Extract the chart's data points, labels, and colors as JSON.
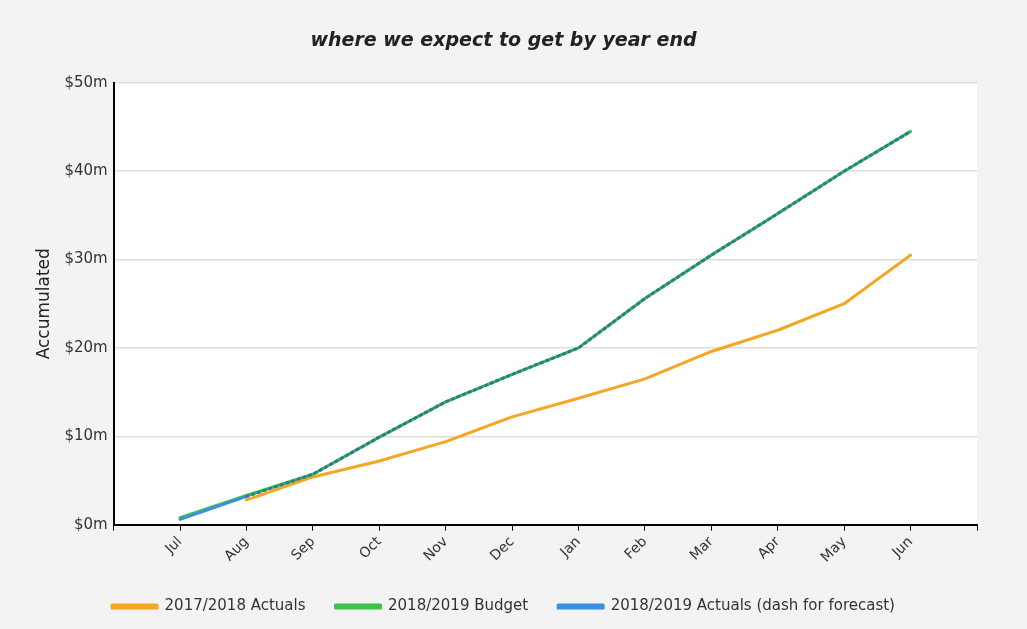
{
  "chart_data": {
    "type": "line",
    "title": "where we expect to get by year end",
    "ylabel": "Accumulated",
    "categories": [
      null,
      "Jul",
      "Aug",
      "Sep",
      "Oct",
      "Nov",
      "Dec",
      "Jan",
      "Feb",
      "Mar",
      "Apr",
      "May",
      "Jun",
      null
    ],
    "series": [
      {
        "name": "2017/2018 Actuals",
        "color": "#f5a623",
        "values": [
          null,
          null,
          2.8,
          5.4,
          7.2,
          9.4,
          12.2,
          14.3,
          16.5,
          19.6,
          22.0,
          25.0,
          30.5,
          null
        ]
      },
      {
        "name": "2018/2019 Budget",
        "color": "#3cc34a",
        "values": [
          null,
          0.8,
          3.3,
          5.7,
          9.9,
          13.9,
          17.0,
          20.0,
          25.6,
          30.5,
          35.2,
          40.0,
          44.5,
          null
        ]
      },
      {
        "name": "2018/2019 Actuals (dash for forecast)",
        "color": "#3a8ee6",
        "values": [
          null,
          0.6,
          3.2,
          null,
          null,
          null,
          null,
          null,
          null,
          null,
          null,
          null,
          null,
          null
        ]
      },
      {
        "color": "#2a7f8a",
        "line_style": "dotted",
        "values": [
          null,
          null,
          3.2,
          5.7,
          9.9,
          13.9,
          17.0,
          20.0,
          25.6,
          30.5,
          35.2,
          40.0,
          44.5,
          null
        ]
      }
    ],
    "ylim": [
      0,
      50
    ],
    "yticks": [
      {
        "value": 0,
        "label": "$0m"
      },
      {
        "value": 10,
        "label": "$10m"
      },
      {
        "value": 20,
        "label": "$20m"
      },
      {
        "value": 30,
        "label": "$30m"
      },
      {
        "value": 40,
        "label": "$40m"
      },
      {
        "value": 50,
        "label": "$50m"
      }
    ],
    "grid": "y",
    "legend": "bottom",
    "marker": "none",
    "line_style": "solid"
  }
}
